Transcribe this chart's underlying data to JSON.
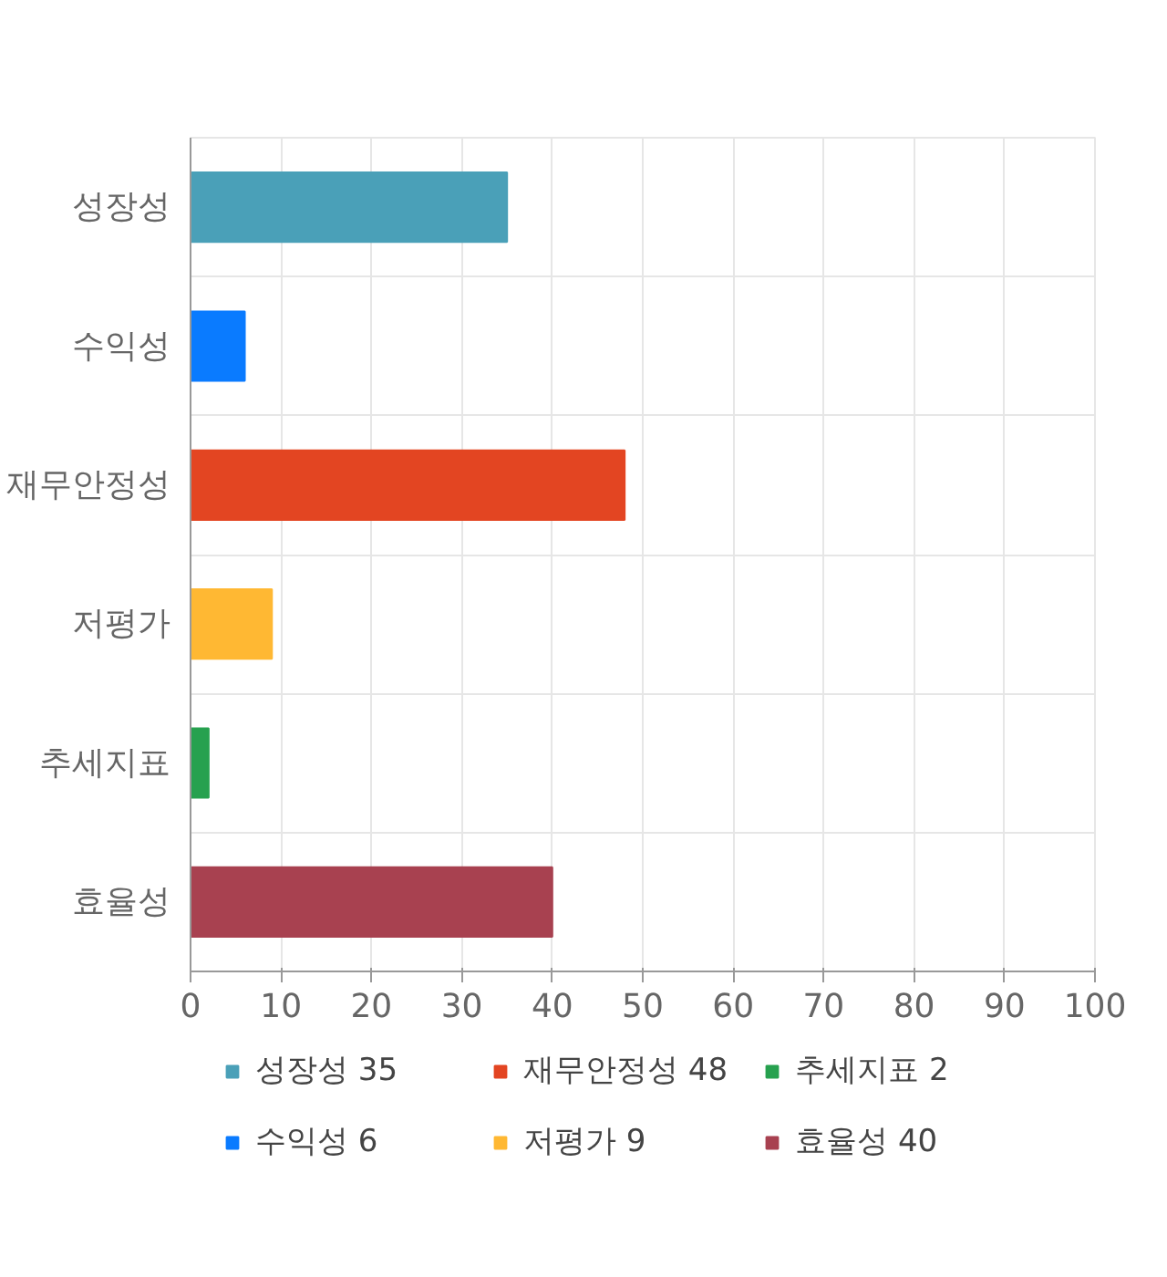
{
  "chart_data": {
    "type": "bar",
    "orientation": "horizontal",
    "categories": [
      "성장성",
      "수익성",
      "재무안정성",
      "저평가",
      "추세지표",
      "효율성"
    ],
    "series": [
      {
        "name": "성장성 35",
        "color": "#4aa0b8",
        "values": [
          35,
          null,
          null,
          null,
          null,
          null
        ]
      },
      {
        "name": "수익성 6",
        "color": "#0a7bff",
        "values": [
          null,
          6,
          null,
          null,
          null,
          null
        ]
      },
      {
        "name": "재무안정성 48",
        "color": "#e34522",
        "values": [
          null,
          null,
          48,
          null,
          null,
          null
        ]
      },
      {
        "name": "저평가 9",
        "color": "#ffb833",
        "values": [
          null,
          null,
          null,
          9,
          null,
          null
        ]
      },
      {
        "name": "추세지표 2",
        "color": "#27a14f",
        "values": [
          null,
          null,
          null,
          null,
          2,
          null
        ]
      },
      {
        "name": "효율성 40",
        "color": "#a84150",
        "values": [
          null,
          null,
          null,
          null,
          null,
          40
        ]
      }
    ],
    "xlim": [
      0,
      100
    ],
    "xticks": [
      0,
      10,
      20,
      30,
      40,
      50,
      60,
      70,
      80,
      90,
      100
    ],
    "grid": true,
    "legend": "bottom"
  }
}
